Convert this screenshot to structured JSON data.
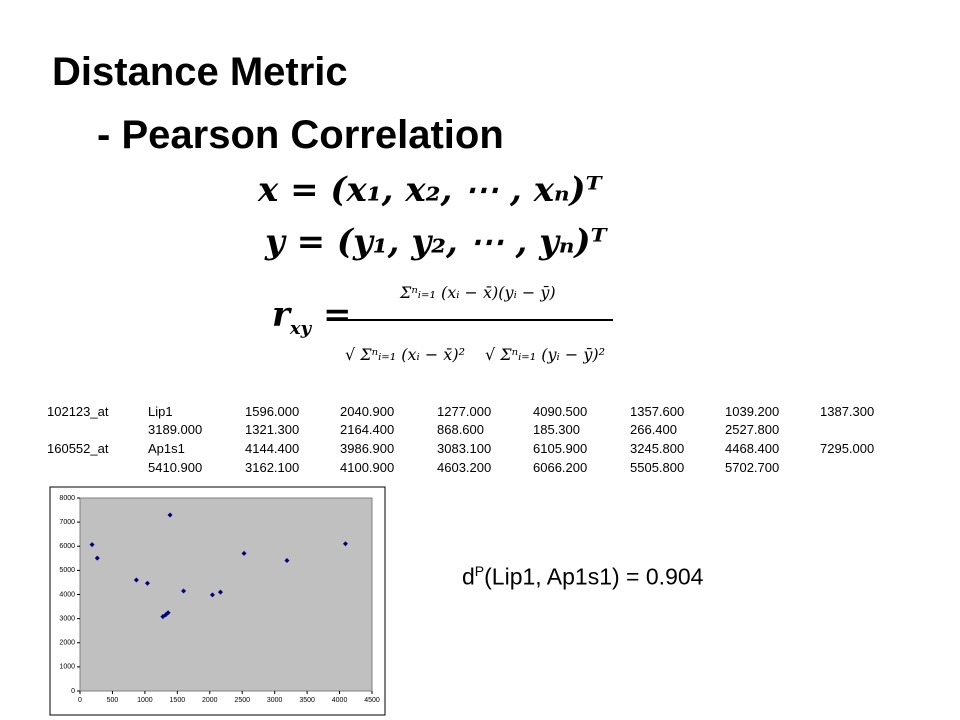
{
  "title": "Distance Metric",
  "subtitle": {
    "dash": "-",
    "text": "Pearson Correlation"
  },
  "formulas": {
    "x_vector": "x = (x₁, x₂, ⋯ , xₙ)ᵀ",
    "y_vector": "y = (y₁, y₂, ⋯ , yₙ)ᵀ",
    "r": "r",
    "r_sub": "xy",
    "equals": "=",
    "numerator": "Σⁿᵢ₌₁ (xᵢ − x̄)(yᵢ − ȳ)",
    "denominator_x": "√ Σⁿᵢ₌₁ (xᵢ − x̄)²",
    "denominator_y": "√ Σⁿᵢ₌₁ (yᵢ − ȳ)²"
  },
  "table": {
    "rows": [
      [
        "102123_at",
        "Lip1",
        "1596.000",
        "2040.900",
        "1277.000",
        "4090.500",
        "1357.600",
        "1039.200",
        "1387.300"
      ],
      [
        "3189.000",
        "1321.300",
        "2164.400",
        "868.600",
        "185.300",
        "266.400",
        "2527.800"
      ],
      [
        "160552_at",
        "Ap1s1",
        "4144.400",
        "3986.900",
        "3083.100",
        "6105.900",
        "3245.800",
        "4468.400",
        "7295.000"
      ],
      [
        "5410.900",
        "3162.100",
        "4100.900",
        "4603.200",
        "6066.200",
        "5505.800",
        "5702.700"
      ]
    ]
  },
  "chart_data": {
    "type": "scatter",
    "x": [
      1596,
      2040.9,
      1277,
      4090.5,
      1357.6,
      1039.2,
      1387.3,
      3189,
      1321.3,
      2164.4,
      868.6,
      185.3,
      266.4,
      2527.8
    ],
    "values": [
      4144.4,
      3986.9,
      3083.1,
      6105.9,
      3245.8,
      4468.4,
      7295,
      5410.9,
      3162.1,
      4100.9,
      4603.2,
      6066.2,
      5505.8,
      5702.7
    ],
    "color": "#000080",
    "xlim": [
      0,
      4500
    ],
    "xticks": [
      0,
      500,
      1000,
      1500,
      2000,
      2500,
      3000,
      3500,
      4000,
      4500
    ],
    "ylim": [
      0,
      8000
    ],
    "yticks": [
      0,
      1000,
      2000,
      3000,
      4000,
      5000,
      6000,
      7000,
      8000
    ]
  },
  "result": {
    "d": "d",
    "sup": "P",
    "text": "(Lip1, Ap1s1) = 0.904"
  }
}
